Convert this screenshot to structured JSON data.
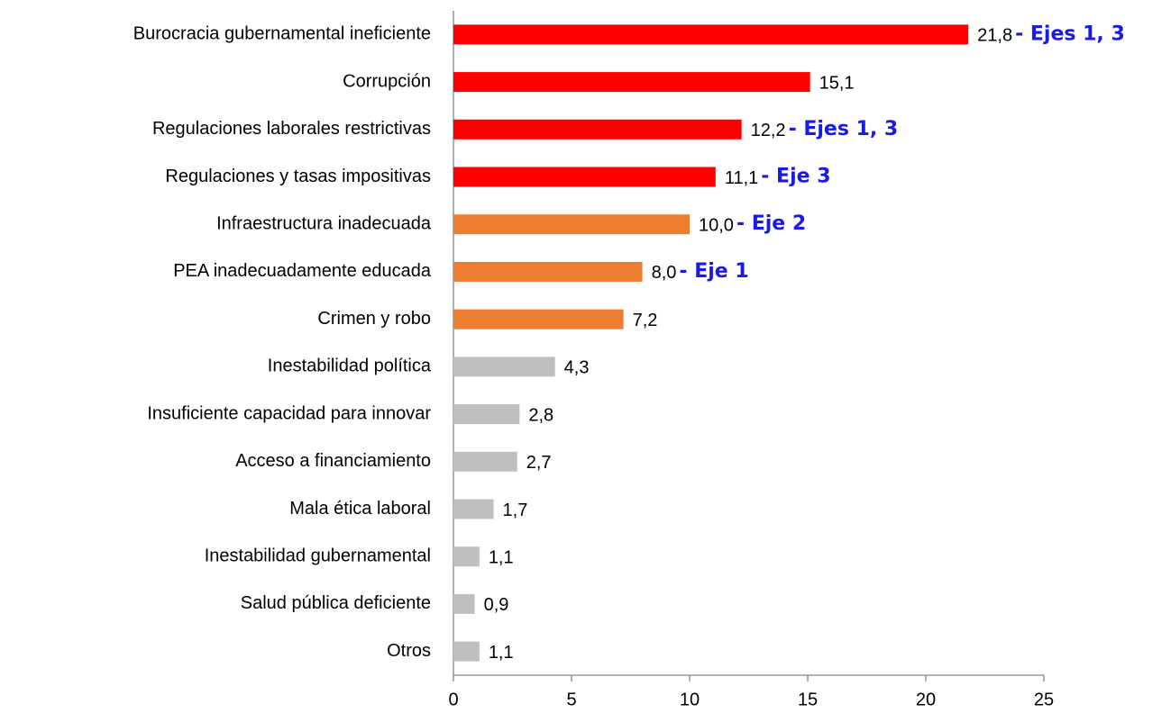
{
  "chart_data": {
    "type": "bar",
    "orientation": "horizontal",
    "categories": [
      "Burocracia gubernamental ineficiente",
      "Corrupción",
      "Regulaciones laborales restrictivas",
      "Regulaciones y tasas impositivas",
      "Infraestructura inadecuada",
      "PEA inadecuadamente educada",
      "Crimen y robo",
      "Inestabilidad política",
      "Insuficiente capacidad para innovar",
      "Acceso a financiamiento",
      "Mala ética laboral",
      "Inestabilidad gubernamental",
      "Salud pública deficiente",
      "Otros"
    ],
    "values": [
      21.8,
      15.1,
      12.2,
      11.1,
      10.0,
      8.0,
      7.2,
      4.3,
      2.8,
      2.7,
      1.7,
      1.1,
      0.9,
      1.1
    ],
    "value_labels": [
      "21,8",
      "15,1",
      "12,2",
      "11,1",
      "10,0",
      "8,0",
      "7,2",
      "4,3",
      "2,8",
      "2,7",
      "1,7",
      "1,1",
      "0,9",
      "1,1"
    ],
    "colors": [
      "#ff0000",
      "#ff0000",
      "#ff0000",
      "#ff0000",
      "#ed7d31",
      "#ed7d31",
      "#ed7d31",
      "#bfbfbf",
      "#bfbfbf",
      "#bfbfbf",
      "#bfbfbf",
      "#bfbfbf",
      "#bfbfbf",
      "#bfbfbf"
    ],
    "annotations": [
      "- Ejes 1, 3",
      null,
      "- Ejes 1, 3",
      "- Eje 3",
      "- Eje 2",
      "- Eje 1",
      null,
      null,
      null,
      null,
      null,
      null,
      null,
      null
    ],
    "xlim": [
      0,
      25
    ],
    "xticks": [
      0,
      5,
      10,
      15,
      20,
      25
    ],
    "grid": false
  }
}
